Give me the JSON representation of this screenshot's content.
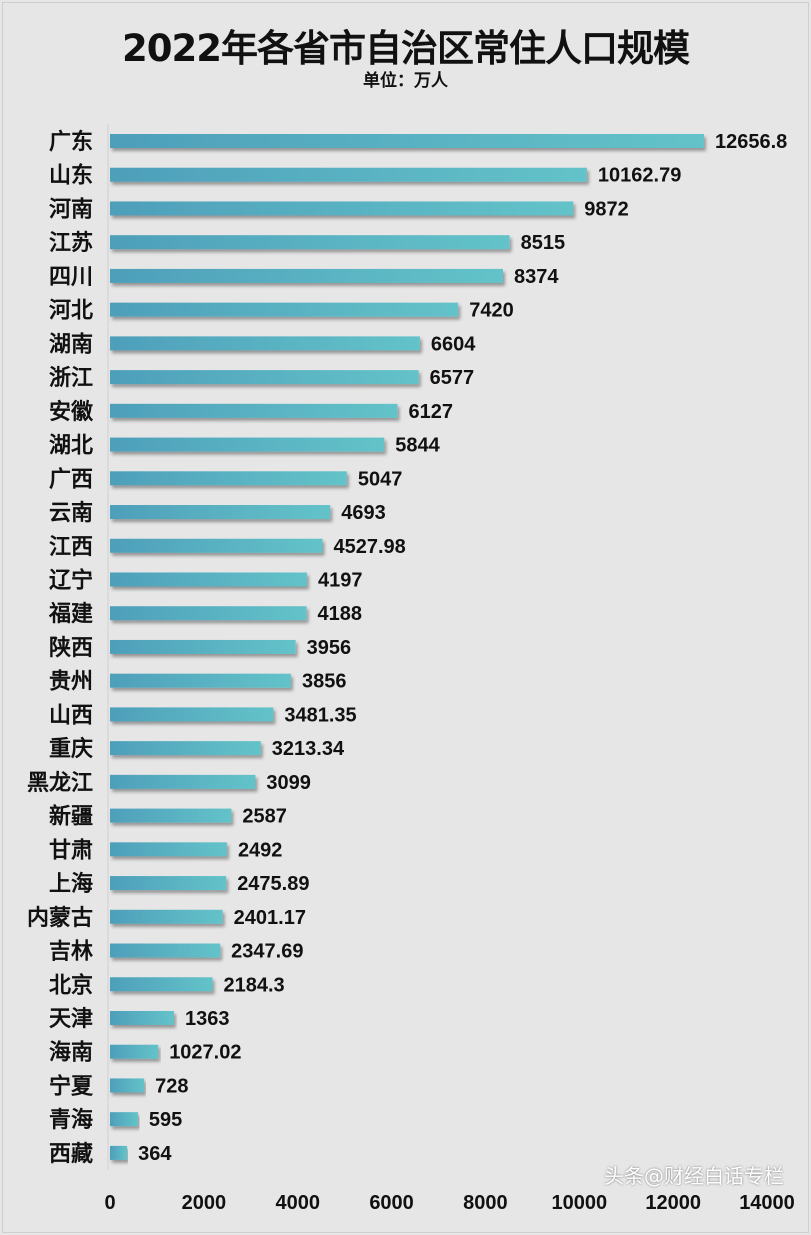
{
  "chart_data": {
    "type": "bar",
    "orientation": "horizontal",
    "title": "2022年各省市自治区常住人口规模",
    "subtitle": "单位：万人",
    "categories": [
      "广东",
      "山东",
      "河南",
      "江苏",
      "四川",
      "河北",
      "湖南",
      "浙江",
      "安徽",
      "湖北",
      "广西",
      "云南",
      "江西",
      "辽宁",
      "福建",
      "陕西",
      "贵州",
      "山西",
      "重庆",
      "黑龙江",
      "新疆",
      "甘肃",
      "上海",
      "内蒙古",
      "吉林",
      "北京",
      "天津",
      "海南",
      "宁夏",
      "青海",
      "西藏"
    ],
    "values": [
      12656.8,
      10162.79,
      9872,
      8515,
      8374,
      7420,
      6604,
      6577,
      6127,
      5844,
      5047,
      4693,
      4527.98,
      4197,
      4188,
      3956,
      3856,
      3481.35,
      3213.34,
      3099,
      2587,
      2492,
      2475.89,
      2401.17,
      2347.69,
      2184.3,
      1363,
      1027.02,
      728,
      595,
      364
    ],
    "data_labels": [
      "12656.8",
      "10162.79",
      "9872",
      "8515",
      "8374",
      "7420",
      "6604",
      "6577",
      "6127",
      "5844",
      "5047",
      "4693",
      "4527.98",
      "4197",
      "4188",
      "3956",
      "3856",
      "3481.35",
      "3213.34",
      "3099",
      "2587",
      "2492",
      "2475.89",
      "2401.17",
      "2347.69",
      "2184.3",
      "1363",
      "1027.02",
      "728",
      "595",
      "364"
    ],
    "xlim": [
      0,
      14000
    ],
    "x_ticks": [
      "0",
      "2000",
      "4000",
      "6000",
      "8000",
      "10000",
      "12000",
      "14000"
    ],
    "grid": false,
    "legend": "none",
    "bar_color": "#5bb8c6",
    "bar_color_dark": "#4a9fb8"
  },
  "watermark": "头条@财经白话专栏"
}
